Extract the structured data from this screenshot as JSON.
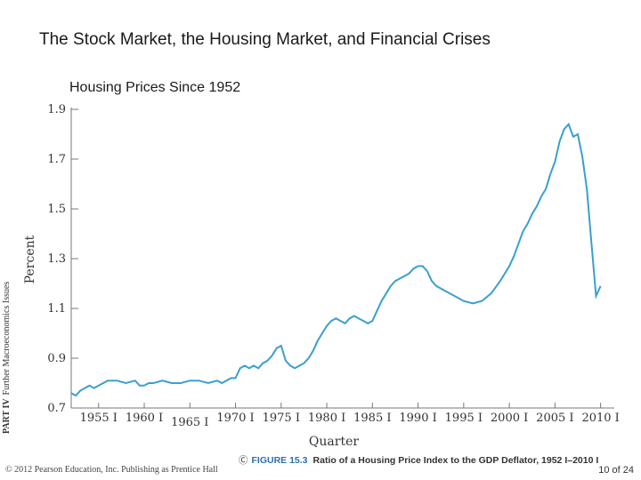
{
  "slide": {
    "title": "The Stock Market, the Housing Market, and Financial Crises",
    "subtitle": "Housing Prices Since 1952",
    "side_label_part": "PART IV",
    "side_label_text": "Further Macroeconomics Issues",
    "caption_icon": "Ⓒ",
    "caption_fig": "FIGURE 15.3",
    "caption_text": "Ratio of a Housing Price Index to the GDP Deflator, 1952 I–2010 I",
    "copyright": "© 2012 Pearson Education, Inc. Publishing as Prentice Hall",
    "page": "10 of 24"
  },
  "chart_data": {
    "type": "line",
    "xlabel": "Quarter",
    "ylabel": "Percent",
    "ylim": [
      0.7,
      1.9
    ],
    "xlim": [
      1952,
      2011.5
    ],
    "yticks": [
      {
        "value": 0.7,
        "label": "0.7"
      },
      {
        "value": 0.9,
        "label": "0.9"
      },
      {
        "value": 1.1,
        "label": "1.1"
      },
      {
        "value": 1.3,
        "label": "1.3"
      },
      {
        "value": 1.5,
        "label": "1.5"
      },
      {
        "value": 1.7,
        "label": "1.7"
      },
      {
        "value": 1.9,
        "label": "1.9"
      }
    ],
    "xticks": [
      {
        "value": 1955,
        "label": "1955 I"
      },
      {
        "value": 1960,
        "label": "1960 I"
      },
      {
        "value": 1965,
        "label": "1965 I"
      },
      {
        "value": 1970,
        "label": "1970 I"
      },
      {
        "value": 1975,
        "label": "1975 I"
      },
      {
        "value": 1980,
        "label": "1980 I"
      },
      {
        "value": 1985,
        "label": "1985 I"
      },
      {
        "value": 1990,
        "label": "1990 I"
      },
      {
        "value": 1995,
        "label": "1995 I"
      },
      {
        "value": 2000,
        "label": "2000 I"
      },
      {
        "value": 2005,
        "label": "2005 I"
      },
      {
        "value": 2010,
        "label": "2010 I"
      }
    ],
    "grid": false,
    "line_color": "#3a9fd0",
    "series": [
      {
        "x": [
          1952,
          1952.5,
          1953,
          1953.5,
          1954,
          1954.5,
          1955,
          1955.5,
          1956,
          1957,
          1958,
          1959,
          1959.5,
          1960,
          1960.5,
          1961,
          1962,
          1963,
          1964,
          1965,
          1966,
          1967,
          1968,
          1968.5,
          1969,
          1969.5,
          1970,
          1970.5,
          1971,
          1971.5,
          1972,
          1972.5,
          1973,
          1973.5,
          1974,
          1974.5,
          1975,
          1975.5,
          1976,
          1976.5,
          1977,
          1977.5,
          1978,
          1978.5,
          1979,
          1979.5,
          1980,
          1980.5,
          1981,
          1981.5,
          1982,
          1982.5,
          1983,
          1983.5,
          1984,
          1984.5,
          1985,
          1985.5,
          1986,
          1986.5,
          1987,
          1987.5,
          1988,
          1988.5,
          1989,
          1989.5,
          1990,
          1990.5,
          1991,
          1991.5,
          1992,
          1993,
          1994,
          1995,
          1996,
          1997,
          1998,
          1999,
          2000,
          2000.5,
          2001,
          2001.5,
          2002,
          2002.5,
          2003,
          2003.5,
          2004,
          2004.5,
          2005,
          2005.5,
          2006,
          2006.5,
          2007,
          2007.5,
          2008,
          2008.5,
          2009,
          2009.5,
          2010
        ],
        "y": [
          0.76,
          0.75,
          0.77,
          0.78,
          0.79,
          0.78,
          0.79,
          0.8,
          0.81,
          0.81,
          0.8,
          0.81,
          0.79,
          0.79,
          0.8,
          0.8,
          0.81,
          0.8,
          0.8,
          0.81,
          0.81,
          0.8,
          0.81,
          0.8,
          0.81,
          0.82,
          0.82,
          0.86,
          0.87,
          0.86,
          0.87,
          0.86,
          0.88,
          0.89,
          0.91,
          0.94,
          0.95,
          0.89,
          0.87,
          0.86,
          0.87,
          0.88,
          0.9,
          0.93,
          0.97,
          1.0,
          1.03,
          1.05,
          1.06,
          1.05,
          1.04,
          1.06,
          1.07,
          1.06,
          1.05,
          1.04,
          1.05,
          1.09,
          1.13,
          1.16,
          1.19,
          1.21,
          1.22,
          1.23,
          1.24,
          1.26,
          1.27,
          1.27,
          1.25,
          1.21,
          1.19,
          1.17,
          1.15,
          1.13,
          1.12,
          1.13,
          1.16,
          1.21,
          1.27,
          1.31,
          1.36,
          1.41,
          1.44,
          1.48,
          1.51,
          1.55,
          1.58,
          1.64,
          1.69,
          1.77,
          1.82,
          1.84,
          1.79,
          1.8,
          1.71,
          1.58,
          1.36,
          1.15,
          1.19
        ]
      }
    ]
  }
}
